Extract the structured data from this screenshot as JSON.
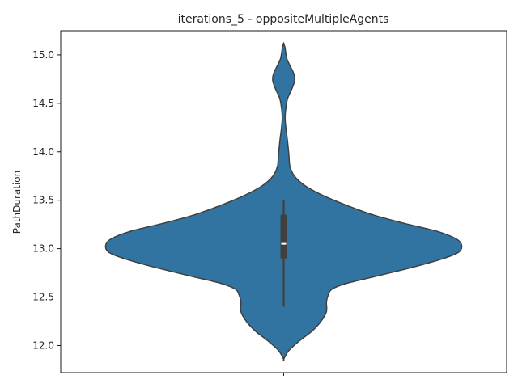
{
  "chart_data": {
    "type": "violin",
    "title": "iterations_5 - oppositeMultipleAgents",
    "xlabel": "",
    "ylabel": "PathDuration",
    "ylim": [
      11.72,
      15.25
    ],
    "yticks": [
      12.0,
      12.5,
      13.0,
      13.5,
      14.0,
      14.5,
      15.0
    ],
    "ytick_labels": [
      "12.0",
      "12.5",
      "13.0",
      "13.5",
      "14.0",
      "14.5",
      "15.0"
    ],
    "xticks": [
      ""
    ],
    "grid": false,
    "legend": "none",
    "fill_color": "#3274a1",
    "edge_color": "#3f3f3f",
    "density_profile": [
      {
        "y": 11.86,
        "w": 0.0
      },
      {
        "y": 11.95,
        "w": 0.03
      },
      {
        "y": 12.05,
        "w": 0.09
      },
      {
        "y": 12.15,
        "w": 0.16
      },
      {
        "y": 12.25,
        "w": 0.21
      },
      {
        "y": 12.35,
        "w": 0.24
      },
      {
        "y": 12.45,
        "w": 0.24
      },
      {
        "y": 12.52,
        "w": 0.25
      },
      {
        "y": 12.58,
        "w": 0.27
      },
      {
        "y": 12.64,
        "w": 0.35
      },
      {
        "y": 12.72,
        "w": 0.53
      },
      {
        "y": 12.82,
        "w": 0.75
      },
      {
        "y": 12.9,
        "w": 0.9
      },
      {
        "y": 12.96,
        "w": 0.98
      },
      {
        "y": 13.03,
        "w": 1.0
      },
      {
        "y": 13.1,
        "w": 0.97
      },
      {
        "y": 13.18,
        "w": 0.86
      },
      {
        "y": 13.26,
        "w": 0.68
      },
      {
        "y": 13.35,
        "w": 0.5
      },
      {
        "y": 13.45,
        "w": 0.35
      },
      {
        "y": 13.55,
        "w": 0.22
      },
      {
        "y": 13.65,
        "w": 0.12
      },
      {
        "y": 13.75,
        "w": 0.06
      },
      {
        "y": 13.85,
        "w": 0.035
      },
      {
        "y": 13.95,
        "w": 0.03
      },
      {
        "y": 14.05,
        "w": 0.025
      },
      {
        "y": 14.15,
        "w": 0.019
      },
      {
        "y": 14.25,
        "w": 0.012
      },
      {
        "y": 14.35,
        "w": 0.008
      },
      {
        "y": 14.45,
        "w": 0.012
      },
      {
        "y": 14.55,
        "w": 0.022
      },
      {
        "y": 14.65,
        "w": 0.046
      },
      {
        "y": 14.73,
        "w": 0.061
      },
      {
        "y": 14.8,
        "w": 0.058
      },
      {
        "y": 14.88,
        "w": 0.038
      },
      {
        "y": 14.96,
        "w": 0.018
      },
      {
        "y": 15.04,
        "w": 0.01
      },
      {
        "y": 15.08,
        "w": 0.007
      },
      {
        "y": 15.12,
        "w": 0.0
      }
    ],
    "box": {
      "whisker_low": 12.4,
      "q1": 12.9,
      "median": 13.05,
      "q3": 13.35,
      "whisker_high": 13.5
    }
  }
}
